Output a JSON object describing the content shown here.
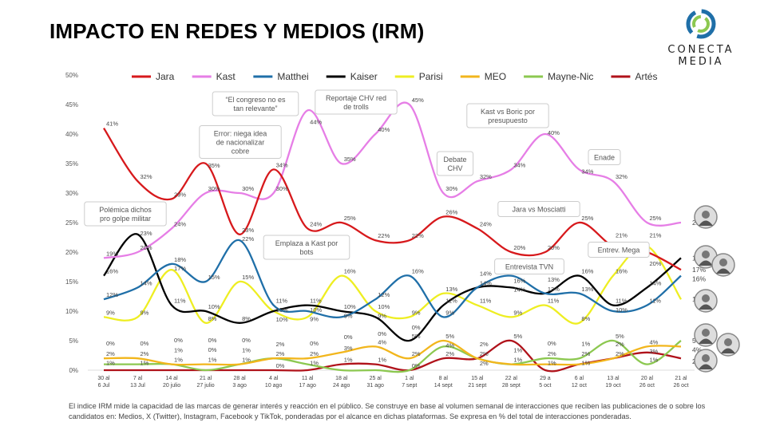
{
  "title": "IMPACTO EN REDES Y MEDIOS (IRM)",
  "logo": {
    "line1": "CONECTA",
    "line2": "MEDIA"
  },
  "footnote": "El indice IRM mide la capacidad de las marcas de generar interés y reacción en el público. Se construye en base al volumen semanal de interacciones que reciben las publicaciones de o sobre los candidatos en: Medios, X (Twitter), Instagram, Facebook y TikTok, ponderadas por el alcance en dichas plataformas. Se expresa en % del total de interacciones ponderadas.",
  "chart_data": {
    "type": "line",
    "ylim": [
      0,
      50
    ],
    "yticks": [
      "0%",
      "5%",
      "10%",
      "15%",
      "20%",
      "25%",
      "30%",
      "35%",
      "40%",
      "45%",
      "50%"
    ],
    "grid": false,
    "legend_position": "top",
    "categories": [
      "30 al 6 Jul",
      "7 al 13 Jul",
      "14 al 20 julio",
      "21 al 27 julio",
      "28 al 3 ago",
      "4 al 10 ago",
      "11 al 17 ago",
      "18 al 24 ago",
      "25 al 31 ago",
      "1 al 7 sept",
      "8 al 14 sept",
      "15 al 21 sept",
      "22 al 28 sept",
      "29 a 5 oct",
      "6 al 12 oct",
      "13 al 19 oct",
      "20 al 26 oct",
      "21 al 26 oct"
    ],
    "series": [
      {
        "name": "Jara",
        "color": "#d7191c",
        "values": [
          41,
          32,
          29,
          35,
          23,
          34,
          24,
          25,
          22,
          22,
          26,
          24,
          20,
          20,
          25,
          21,
          20,
          17
        ]
      },
      {
        "name": "Kast",
        "color": "#e67ee6",
        "values": [
          19,
          20,
          24,
          30,
          30,
          30,
          44,
          35,
          40,
          45,
          30,
          32,
          34,
          40,
          34,
          32,
          25,
          25
        ]
      },
      {
        "name": "Matthei",
        "color": "#1f6fa8",
        "values": [
          12,
          14,
          18,
          15,
          22,
          11,
          10,
          9,
          12,
          16,
          9,
          14,
          16,
          13,
          13,
          10,
          11,
          16
        ]
      },
      {
        "name": "Kaiser",
        "color": "#000000",
        "values": [
          16,
          23,
          11,
          10,
          8,
          10,
          11,
          10,
          9,
          5,
          11,
          14,
          14,
          13,
          16,
          11,
          14,
          19
        ]
      },
      {
        "name": "Parisi",
        "color": "#eeee22",
        "values": [
          9,
          9,
          17,
          8,
          15,
          10,
          9,
          16,
          10,
          9,
          13,
          11,
          9,
          11,
          8,
          16,
          21,
          12
        ]
      },
      {
        "name": "MEO",
        "color": "#f2b61c",
        "values": [
          2,
          2,
          1,
          1,
          1,
          2,
          2,
          3,
          4,
          2,
          5,
          2,
          1,
          1,
          1,
          2,
          4,
          4
        ]
      },
      {
        "name": "Mayne-Nic",
        "color": "#8cc850",
        "values": [
          1,
          1,
          1,
          0,
          1,
          2,
          1,
          0,
          0,
          0,
          4,
          2,
          1,
          2,
          2,
          5,
          1,
          5
        ]
      },
      {
        "name": "Artés",
        "color": "#b0121a",
        "values": [
          0,
          0,
          0,
          0,
          0,
          0,
          0,
          1,
          1,
          0,
          2,
          2,
          5,
          0,
          1,
          2,
          3,
          2
        ]
      }
    ],
    "annotations": [
      {
        "text": "Polémica dichos pro golpe militar",
        "category": "7 al 13 Jul"
      },
      {
        "text": "Error: niega idea de nacionalizar cobre",
        "category": "21 al 27 julio"
      },
      {
        "text": "“El congreso no es tan relevante”",
        "category": "11 al 17 ago"
      },
      {
        "text": "Emplaza a Kast por bots",
        "category": "28 al 3 ago"
      },
      {
        "text": "Reportaje CHV red de trolls",
        "category": "1 al 7 sept"
      },
      {
        "text": "Debate CHV",
        "category": "8 al 14 sept"
      },
      {
        "text": "Kast vs Boric por presupuesto",
        "category": "29 a 5 oct"
      },
      {
        "text": "Enade",
        "category": "13 al 19 oct"
      },
      {
        "text": "Jara vs Mosciatti",
        "category": "6 al 12 oct"
      },
      {
        "text": "Entrevista TVN",
        "category": "6 al 12 oct"
      },
      {
        "text": "Entrev. Mega",
        "category": "20 al 26 oct"
      }
    ]
  }
}
